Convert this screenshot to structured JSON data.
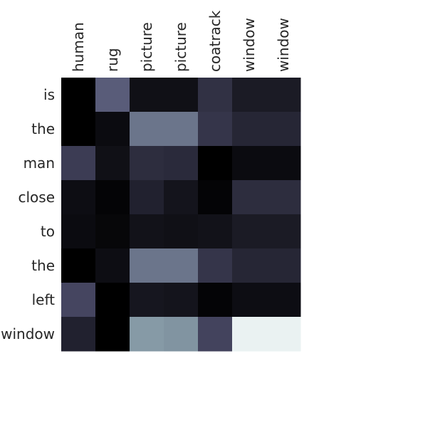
{
  "chart_data": {
    "type": "heatmap",
    "title": "",
    "xlabel": "",
    "ylabel": "",
    "x_tick_labels": [
      "human",
      "rug",
      "picture",
      "picture",
      "coatrack",
      "window",
      "window"
    ],
    "y_tick_labels": [
      "is",
      "the",
      "man",
      "close",
      "to",
      "the",
      "left",
      "window"
    ],
    "x_tick_position": "top",
    "x_tick_rotation": 90,
    "colorbar": false,
    "grid": false,
    "colormap": "bone",
    "value_range": [
      0,
      1
    ],
    "values": [
      [
        0.0,
        0.4,
        0.07,
        0.07,
        0.22,
        0.12,
        0.12
      ],
      [
        0.0,
        0.05,
        0.48,
        0.48,
        0.24,
        0.17,
        0.17
      ],
      [
        0.27,
        0.07,
        0.2,
        0.19,
        0.0,
        0.05,
        0.05
      ],
      [
        0.06,
        0.02,
        0.15,
        0.09,
        0.02,
        0.2,
        0.2
      ],
      [
        0.05,
        0.03,
        0.08,
        0.07,
        0.08,
        0.12,
        0.12
      ],
      [
        0.0,
        0.06,
        0.48,
        0.48,
        0.24,
        0.17,
        0.17
      ],
      [
        0.31,
        0.0,
        0.1,
        0.09,
        0.02,
        0.06,
        0.06
      ],
      [
        0.15,
        0.0,
        0.6,
        0.58,
        0.3,
        0.94,
        0.94
      ]
    ]
  }
}
